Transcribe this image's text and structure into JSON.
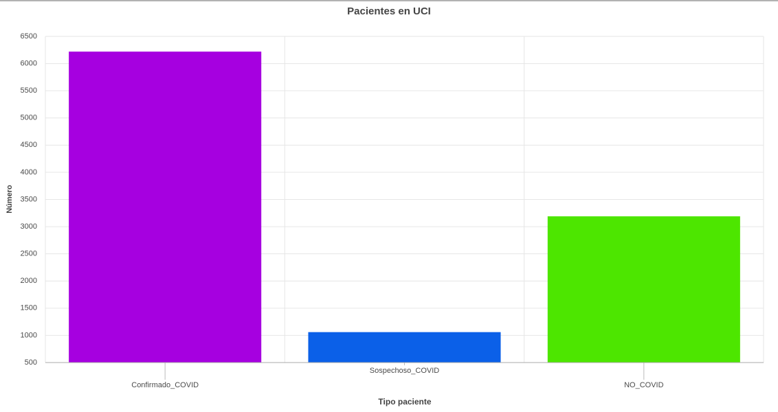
{
  "chart_data": {
    "type": "bar",
    "title": "Pacientes en UCI",
    "x_label": "Tipo paciente",
    "y_label": "Número",
    "categories": [
      "Confirmado_COVID",
      "Sospechoso_COVID",
      "NO_COVID"
    ],
    "values": [
      6220,
      1060,
      3190
    ],
    "colors": [
      "#a600e0",
      "#0b60e8",
      "#4de600"
    ],
    "ylim": [
      500,
      6500
    ],
    "yticks": [
      500,
      1000,
      1500,
      2000,
      2500,
      3000,
      3500,
      4000,
      4500,
      5000,
      5500,
      6000,
      6500
    ],
    "grid": true
  }
}
